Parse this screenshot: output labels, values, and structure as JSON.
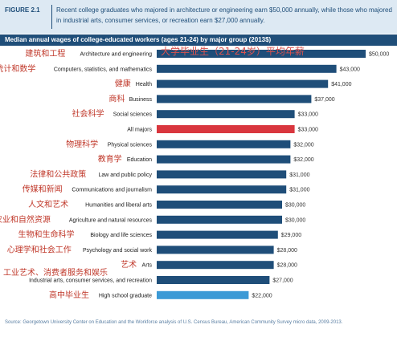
{
  "figure": {
    "label": "FIGURE 2.1",
    "caption": "Recent college graduates who majored in architecture or engineering earn $50,000 annually, while those who majored in industrial arts, consumer services, or recreation earn $27,000 annually."
  },
  "overlay_title": "大学毕业生（21-24岁）平均年薪",
  "source": "Source: Georgetown University Center on Education and the Workforce analysis of U.S. Census Bureau, American Community Survey micro data, 2009-2013.",
  "colors": {
    "bar": "#1f4e79",
    "highlight": "#d9363e",
    "high_school": "#3c9ad6",
    "annotation": "#c0392b",
    "header_bg": "#dde9f3"
  },
  "chart_data": {
    "type": "bar",
    "orientation": "horizontal",
    "title": "Median annual wages of college-educated workers (ages 21-24) by major group (2013$)",
    "categories": [
      "Architecture and engineering",
      "Computers, statistics, and mathematics",
      "Health",
      "Business",
      "Social sciences",
      "All majors",
      "Physical sciences",
      "Education",
      "Law and public policy",
      "Communications and journalism",
      "Humanities and liberal arts",
      "Agriculture and natural resources",
      "Biology and life sciences",
      "Psychology and social work",
      "Arts",
      "Industrial arts, consumer services, and recreation",
      "High school graduate"
    ],
    "annotations_zh": [
      "建筑和工程",
      "计算机、统计和数学",
      "健康",
      "商科",
      "社会科学",
      "",
      "物理科学",
      "教育学",
      "法律和公共政策",
      "传媒和新闻",
      "人文和艺术",
      "农业和自然资源",
      "生物和生命科学",
      "心理学和社会工作",
      "艺术",
      "工业艺术、消费者服务和娱乐",
      "高中毕业生"
    ],
    "values": [
      50000,
      43000,
      41000,
      37000,
      33000,
      33000,
      32000,
      32000,
      31000,
      31000,
      30000,
      30000,
      29000,
      28000,
      28000,
      27000,
      22000
    ],
    "value_labels": [
      "$50,000",
      "$43,000",
      "$41,000",
      "$37,000",
      "$33,000",
      "$33,000",
      "$32,000",
      "$32,000",
      "$31,000",
      "$31,000",
      "$30,000",
      "$30,000",
      "$29,000",
      "$28,000",
      "$28,000",
      "$27,000",
      "$22,000"
    ],
    "highlight_category": "All majors",
    "high_school_category": "High school graduate",
    "xlim": [
      0,
      50000
    ],
    "grid": false,
    "legend": "none"
  }
}
